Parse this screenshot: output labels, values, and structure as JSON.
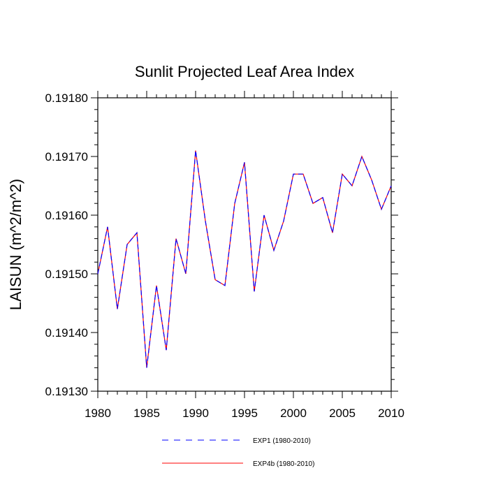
{
  "chart_data": {
    "type": "line",
    "title": "Sunlit Projected Leaf Area Index",
    "xlabel": "",
    "ylabel": "LAISUN  (m^2/m^2)",
    "xlim": [
      1980,
      2010
    ],
    "ylim": [
      0.1913,
      0.1918
    ],
    "x_ticks": [
      1980,
      1985,
      1990,
      1995,
      2000,
      2005,
      2010
    ],
    "y_ticks": [
      0.1913,
      0.1914,
      0.1915,
      0.1916,
      0.1917,
      0.1918
    ],
    "x_tick_labels": [
      "1980",
      "1985",
      "1990",
      "1995",
      "2000",
      "2005",
      "2010"
    ],
    "y_tick_labels": [
      "0.19130",
      "0.19140",
      "0.19150",
      "0.19160",
      "0.19170",
      "0.19180"
    ],
    "grid": false,
    "legend_position": "bottom",
    "x": [
      1980,
      1981,
      1982,
      1983,
      1984,
      1985,
      1986,
      1987,
      1988,
      1989,
      1990,
      1991,
      1992,
      1993,
      1994,
      1995,
      1996,
      1997,
      1998,
      1999,
      2000,
      2001,
      2002,
      2003,
      2004,
      2005,
      2006,
      2007,
      2008,
      2009,
      2010
    ],
    "series": [
      {
        "name": "EXP1 (1980-2010)",
        "color": "#0000ff",
        "dash": "dashed",
        "values": [
          0.1915,
          0.19158,
          0.19144,
          0.19155,
          0.19157,
          0.19134,
          0.19148,
          0.19137,
          0.19156,
          0.1915,
          0.19171,
          0.19159,
          0.19149,
          0.19148,
          0.19162,
          0.19169,
          0.19147,
          0.1916,
          0.19154,
          0.19159,
          0.19167,
          0.19167,
          0.19162,
          0.19163,
          0.19157,
          0.19167,
          0.19165,
          0.1917,
          0.19166,
          0.19161,
          0.19165
        ]
      },
      {
        "name": "EXP4b (1980-2010)",
        "color": "#ff0000",
        "dash": "solid",
        "values": [
          0.1915,
          0.19158,
          0.19144,
          0.19155,
          0.19157,
          0.19134,
          0.19148,
          0.19137,
          0.19156,
          0.1915,
          0.19171,
          0.19159,
          0.19149,
          0.19148,
          0.19162,
          0.19169,
          0.19147,
          0.1916,
          0.19154,
          0.19159,
          0.19167,
          0.19167,
          0.19162,
          0.19163,
          0.19157,
          0.19167,
          0.19165,
          0.1917,
          0.19166,
          0.19161,
          0.19165
        ]
      }
    ]
  }
}
